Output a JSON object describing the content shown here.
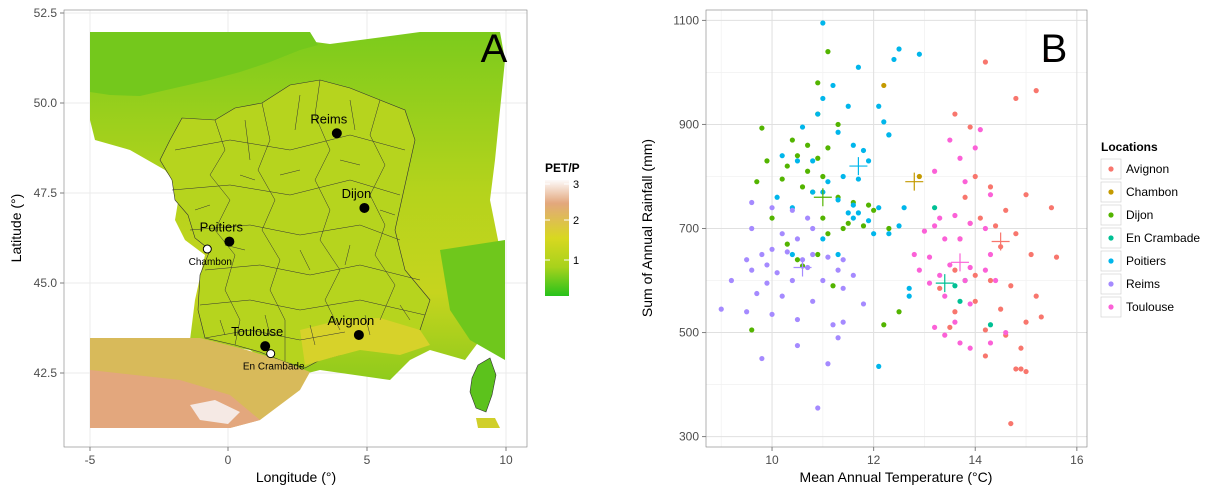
{
  "panel_a": {
    "panel_letter": "A",
    "xlabel": "Longitude (°)",
    "ylabel": "Latitude (°)",
    "xticks": [
      "-5",
      "0",
      "5",
      "10"
    ],
    "yticks": [
      "42.5",
      "45.0",
      "47.5",
      "50.0",
      "52.5"
    ],
    "xlim": [
      -5.9,
      10.9
    ],
    "ylim": [
      40.9,
      52.6
    ],
    "legend_title": "PET/P",
    "legend_ticks": [
      "1",
      "2",
      "3"
    ],
    "legend_range": [
      0.4,
      3.0
    ],
    "colors": {
      "low": "#27c21b",
      "mid": "#d8d820",
      "high": "#e3a77d",
      "top": "#fdfafa",
      "sea": "#ffffff"
    },
    "cities": [
      {
        "name": "Reims",
        "lon": 4.0,
        "lat": 49.3,
        "marker": "filled"
      },
      {
        "name": "Dijon",
        "lon": 5.0,
        "lat": 47.3,
        "marker": "filled"
      },
      {
        "name": "Poitiers",
        "lon": 0.1,
        "lat": 46.4,
        "marker": "filled"
      },
      {
        "name": "Chambon",
        "lon": -0.7,
        "lat": 46.2,
        "marker": "open"
      },
      {
        "name": "Toulouse",
        "lon": 1.4,
        "lat": 43.6,
        "marker": "filled"
      },
      {
        "name": "En Crambade",
        "lon": 1.6,
        "lat": 43.4,
        "marker": "open"
      },
      {
        "name": "Avignon",
        "lon": 4.8,
        "lat": 43.9,
        "marker": "filled"
      }
    ]
  },
  "chart_data": [
    {
      "type": "scatter",
      "panel": "B",
      "title": "",
      "xlabel": "Mean Annual Temperature (°C)",
      "ylabel": "Sum of Annual Rainfall (mm)",
      "xlim": [
        8.7,
        16.2
      ],
      "ylim": [
        280,
        1120
      ],
      "xticks": [
        10,
        12,
        14,
        16
      ],
      "yticks": [
        300,
        500,
        700,
        900,
        1100
      ],
      "grid": true,
      "legend_title": "Locations",
      "legend_position": "right",
      "series": [
        {
          "name": "Avignon",
          "color": "#f8766d",
          "mean": [
            14.5,
            675
          ],
          "points": [
            [
              14.2,
              1020
            ],
            [
              14.8,
              950
            ],
            [
              15.2,
              965
            ],
            [
              15.4,
              1025
            ],
            [
              13.6,
              920
            ],
            [
              13.9,
              895
            ],
            [
              14.0,
              800
            ],
            [
              14.3,
              780
            ],
            [
              13.8,
              760
            ],
            [
              14.6,
              735
            ],
            [
              15.0,
              765
            ],
            [
              15.5,
              740
            ],
            [
              14.1,
              720
            ],
            [
              13.9,
              710
            ],
            [
              14.4,
              705
            ],
            [
              14.8,
              690
            ],
            [
              13.7,
              680
            ],
            [
              14.5,
              665
            ],
            [
              15.1,
              650
            ],
            [
              15.6,
              645
            ],
            [
              13.6,
              620
            ],
            [
              14.0,
              610
            ],
            [
              14.3,
              600
            ],
            [
              14.7,
              590
            ],
            [
              15.2,
              570
            ],
            [
              14.0,
              560
            ],
            [
              14.5,
              545
            ],
            [
              15.0,
              520
            ],
            [
              15.3,
              530
            ],
            [
              13.5,
              510
            ],
            [
              14.2,
              505
            ],
            [
              14.6,
              495
            ],
            [
              14.9,
              470
            ],
            [
              14.2,
              455
            ],
            [
              14.8,
              430
            ],
            [
              15.0,
              425
            ],
            [
              14.7,
              325
            ],
            [
              13.3,
              585
            ],
            [
              13.6,
              540
            ],
            [
              14.9,
              430
            ]
          ]
        },
        {
          "name": "Chambon",
          "color": "#c49a00",
          "mean": [
            12.8,
            790
          ],
          "points": [
            [
              12.2,
              975
            ],
            [
              12.9,
              800
            ]
          ]
        },
        {
          "name": "Dijon",
          "color": "#53b400",
          "mean": [
            11.0,
            760
          ],
          "points": [
            [
              11.1,
              1040
            ],
            [
              10.9,
              980
            ],
            [
              10.9,
              920
            ],
            [
              11.3,
              900
            ],
            [
              9.8,
              893
            ],
            [
              10.4,
              870
            ],
            [
              10.7,
              860
            ],
            [
              11.1,
              855
            ],
            [
              10.5,
              840
            ],
            [
              10.9,
              835
            ],
            [
              9.9,
              830
            ],
            [
              10.3,
              820
            ],
            [
              10.7,
              810
            ],
            [
              11.0,
              800
            ],
            [
              10.2,
              795
            ],
            [
              10.6,
              780
            ],
            [
              10.8,
              770
            ],
            [
              11.3,
              760
            ],
            [
              11.6,
              750
            ],
            [
              11.9,
              745
            ],
            [
              12.0,
              735
            ],
            [
              11.0,
              720
            ],
            [
              10.0,
              720
            ],
            [
              11.5,
              710
            ],
            [
              11.8,
              705
            ],
            [
              11.4,
              700
            ],
            [
              11.1,
              690
            ],
            [
              10.3,
              670
            ],
            [
              10.9,
              650
            ],
            [
              10.5,
              640
            ],
            [
              10.6,
              628
            ],
            [
              12.2,
              515
            ],
            [
              9.6,
              505
            ],
            [
              11.2,
              590
            ],
            [
              9.7,
              790
            ],
            [
              12.3,
              700
            ],
            [
              12.5,
              540
            ]
          ]
        },
        {
          "name": "En Crambade",
          "color": "#00c094",
          "mean": [
            13.4,
            595
          ],
          "points": [
            [
              13.2,
              740
            ],
            [
              13.6,
              590
            ],
            [
              13.7,
              560
            ],
            [
              14.3,
              515
            ],
            [
              13.8,
              600
            ]
          ]
        },
        {
          "name": "Poitiers",
          "color": "#00b6eb",
          "mean": [
            11.7,
            820
          ],
          "points": [
            [
              11.0,
              1095
            ],
            [
              12.5,
              1045
            ],
            [
              12.9,
              1035
            ],
            [
              12.4,
              1025
            ],
            [
              11.7,
              1010
            ],
            [
              12.1,
              935
            ],
            [
              11.2,
              975
            ],
            [
              12.3,
              880
            ],
            [
              12.2,
              905
            ],
            [
              12.3,
              880
            ],
            [
              11.0,
              950
            ],
            [
              10.9,
              920
            ],
            [
              11.5,
              935
            ],
            [
              10.6,
              895
            ],
            [
              11.3,
              885
            ],
            [
              11.6,
              860
            ],
            [
              10.2,
              840
            ],
            [
              10.5,
              830
            ],
            [
              11.9,
              830
            ],
            [
              11.8,
              850
            ],
            [
              10.8,
              830
            ],
            [
              11.0,
              770
            ],
            [
              11.4,
              800
            ],
            [
              11.7,
              795
            ],
            [
              11.1,
              790
            ],
            [
              10.8,
              770
            ],
            [
              11.3,
              755
            ],
            [
              11.6,
              745
            ],
            [
              12.1,
              740
            ],
            [
              11.7,
              730
            ],
            [
              12.6,
              740
            ],
            [
              10.1,
              760
            ],
            [
              10.4,
              740
            ],
            [
              11.5,
              730
            ],
            [
              11.6,
              720
            ],
            [
              11.9,
              715
            ],
            [
              12.5,
              705
            ],
            [
              12.0,
              690
            ],
            [
              12.3,
              690
            ],
            [
              11.3,
              650
            ],
            [
              10.4,
              650
            ],
            [
              12.7,
              585
            ],
            [
              12.7,
              570
            ],
            [
              11.0,
              680
            ],
            [
              12.1,
              435
            ]
          ]
        },
        {
          "name": "Reims",
          "color": "#a58aff",
          "mean": [
            10.6,
            625
          ],
          "points": [
            [
              9.6,
              750
            ],
            [
              10.0,
              740
            ],
            [
              10.4,
              735
            ],
            [
              10.7,
              720
            ],
            [
              10.8,
              700
            ],
            [
              9.6,
              700
            ],
            [
              10.2,
              690
            ],
            [
              10.5,
              680
            ],
            [
              9.8,
              650
            ],
            [
              10.0,
              660
            ],
            [
              10.3,
              655
            ],
            [
              10.8,
              650
            ],
            [
              11.1,
              645
            ],
            [
              9.5,
              640
            ],
            [
              9.9,
              630
            ],
            [
              10.6,
              640
            ],
            [
              11.4,
              640
            ],
            [
              9.6,
              620
            ],
            [
              10.1,
              615
            ],
            [
              10.7,
              625
            ],
            [
              11.3,
              620
            ],
            [
              11.6,
              610
            ],
            [
              9.2,
              600
            ],
            [
              9.9,
              595
            ],
            [
              10.4,
              600
            ],
            [
              11.0,
              600
            ],
            [
              11.4,
              585
            ],
            [
              9.7,
              575
            ],
            [
              10.2,
              570
            ],
            [
              10.8,
              560
            ],
            [
              11.8,
              555
            ],
            [
              9.0,
              545
            ],
            [
              9.5,
              540
            ],
            [
              10.0,
              535
            ],
            [
              10.5,
              525
            ],
            [
              11.2,
              515
            ],
            [
              10.5,
              475
            ],
            [
              11.3,
              490
            ],
            [
              9.8,
              450
            ],
            [
              11.1,
              440
            ],
            [
              11.4,
              520
            ],
            [
              10.9,
              355
            ]
          ]
        },
        {
          "name": "Toulouse",
          "color": "#fb61d7",
          "mean": [
            13.7,
            635
          ],
          "points": [
            [
              14.1,
              890
            ],
            [
              13.5,
              870
            ],
            [
              14.0,
              855
            ],
            [
              13.7,
              835
            ],
            [
              13.2,
              810
            ],
            [
              13.8,
              790
            ],
            [
              14.3,
              765
            ],
            [
              13.3,
              720
            ],
            [
              13.6,
              725
            ],
            [
              13.9,
              710
            ],
            [
              14.2,
              700
            ],
            [
              13.0,
              695
            ],
            [
              13.4,
              680
            ],
            [
              13.7,
              680
            ],
            [
              14.3,
              650
            ],
            [
              13.1,
              645
            ],
            [
              13.5,
              630
            ],
            [
              13.9,
              625
            ],
            [
              14.2,
              620
            ],
            [
              12.9,
              620
            ],
            [
              13.3,
              610
            ],
            [
              13.8,
              600
            ],
            [
              14.4,
              600
            ],
            [
              13.1,
              595
            ],
            [
              13.4,
              570
            ],
            [
              13.9,
              555
            ],
            [
              13.2,
              510
            ],
            [
              13.4,
              495
            ],
            [
              13.7,
              480
            ],
            [
              14.3,
              480
            ],
            [
              12.8,
              650
            ],
            [
              14.6,
              500
            ],
            [
              13.9,
              470
            ],
            [
              13.6,
              520
            ],
            [
              13.2,
              705
            ]
          ]
        }
      ]
    }
  ]
}
